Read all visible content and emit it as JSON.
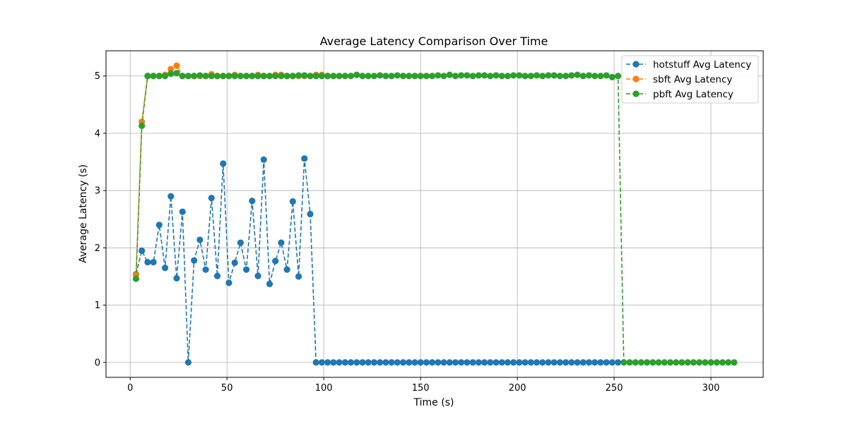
{
  "chart_data": {
    "type": "line",
    "title": "Average Latency Comparison Over Time",
    "xlabel": "Time (s)",
    "ylabel": "Average Latency (s)",
    "xlim": [
      -12.5,
      327
    ],
    "ylim": [
      -0.26,
      5.44
    ],
    "xticks": [
      0,
      50,
      100,
      150,
      200,
      250,
      300
    ],
    "yticks": [
      0,
      1,
      2,
      3,
      4,
      5
    ],
    "grid": true,
    "legend": "top-right",
    "line_style": "dashed",
    "marker": "circle",
    "series": [
      {
        "name": "hotstuff Avg Latency",
        "color": "#1f77b4",
        "points": [
          [
            3,
            1.54
          ],
          [
            6,
            1.95
          ],
          [
            9,
            1.75
          ],
          [
            12,
            1.75
          ],
          [
            15,
            2.4
          ],
          [
            18,
            1.65
          ],
          [
            21,
            2.9
          ],
          [
            24,
            1.47
          ],
          [
            27,
            2.63
          ],
          [
            30,
            0.0
          ],
          [
            33,
            1.78
          ],
          [
            36,
            2.14
          ],
          [
            39,
            1.62
          ],
          [
            42,
            2.87
          ],
          [
            45,
            1.51
          ],
          [
            48,
            3.47
          ],
          [
            51,
            1.39
          ],
          [
            54,
            1.74
          ],
          [
            57,
            2.09
          ],
          [
            60,
            1.62
          ],
          [
            63,
            2.82
          ],
          [
            66,
            1.51
          ],
          [
            69,
            3.54
          ],
          [
            72,
            1.37
          ],
          [
            75,
            1.77
          ],
          [
            78,
            2.09
          ],
          [
            81,
            1.62
          ],
          [
            84,
            2.81
          ],
          [
            87,
            1.5
          ],
          [
            90,
            3.56
          ],
          [
            93,
            2.59
          ],
          [
            96,
            0
          ],
          [
            99,
            0
          ],
          [
            102,
            0
          ],
          [
            105,
            0
          ],
          [
            108,
            0
          ],
          [
            111,
            0
          ],
          [
            114,
            0
          ],
          [
            117,
            0
          ],
          [
            120,
            0
          ],
          [
            123,
            0
          ],
          [
            126,
            0
          ],
          [
            129,
            0
          ],
          [
            132,
            0
          ],
          [
            135,
            0
          ],
          [
            138,
            0
          ],
          [
            141,
            0
          ],
          [
            144,
            0
          ],
          [
            147,
            0
          ],
          [
            150,
            0
          ],
          [
            153,
            0
          ],
          [
            156,
            0
          ],
          [
            159,
            0
          ],
          [
            162,
            0
          ],
          [
            165,
            0
          ],
          [
            168,
            0
          ],
          [
            171,
            0
          ],
          [
            174,
            0
          ],
          [
            177,
            0
          ],
          [
            180,
            0
          ],
          [
            183,
            0
          ],
          [
            186,
            0
          ],
          [
            189,
            0
          ],
          [
            192,
            0
          ],
          [
            195,
            0
          ],
          [
            198,
            0
          ],
          [
            201,
            0
          ],
          [
            204,
            0
          ],
          [
            207,
            0
          ],
          [
            210,
            0
          ],
          [
            213,
            0
          ],
          [
            216,
            0
          ],
          [
            219,
            0
          ],
          [
            222,
            0
          ],
          [
            225,
            0
          ],
          [
            228,
            0
          ],
          [
            231,
            0
          ],
          [
            234,
            0
          ],
          [
            237,
            0
          ],
          [
            240,
            0
          ],
          [
            243,
            0
          ],
          [
            246,
            0
          ],
          [
            249,
            0
          ],
          [
            252,
            0
          ]
        ]
      },
      {
        "name": "sbft Avg Latency",
        "color": "#ff7f0e",
        "points": [
          [
            3,
            1.53
          ],
          [
            6,
            4.2
          ],
          [
            9,
            5.0
          ],
          [
            12,
            5.0
          ],
          [
            15,
            5.0
          ],
          [
            18,
            5.02
          ],
          [
            21,
            5.12
          ],
          [
            24,
            5.18
          ],
          [
            27,
            5.0
          ],
          [
            30,
            5.0
          ],
          [
            33,
            5.0
          ],
          [
            36,
            5.0
          ],
          [
            39,
            5.0
          ],
          [
            42,
            5.03
          ],
          [
            45,
            5.0
          ],
          [
            48,
            5.0
          ],
          [
            51,
            5.0
          ],
          [
            54,
            5.02
          ],
          [
            57,
            5.0
          ],
          [
            60,
            5.0
          ],
          [
            63,
            5.0
          ],
          [
            66,
            5.02
          ],
          [
            69,
            5.0
          ],
          [
            72,
            5.0
          ],
          [
            75,
            5.02
          ],
          [
            78,
            5.02
          ],
          [
            81,
            5.0
          ],
          [
            84,
            5.0
          ],
          [
            87,
            5.0
          ],
          [
            90,
            5.0
          ],
          [
            93,
            5.0
          ],
          [
            96,
            5.02
          ],
          [
            99,
            5.02
          ],
          [
            102,
            5.0
          ],
          [
            105,
            5.0
          ]
        ]
      },
      {
        "name": "pbft Avg Latency",
        "color": "#2ca02c",
        "points": [
          [
            3,
            1.46
          ],
          [
            6,
            4.13
          ],
          [
            9,
            5.0
          ],
          [
            12,
            5.0
          ],
          [
            15,
            5.0
          ],
          [
            18,
            5.0
          ],
          [
            21,
            5.04
          ],
          [
            24,
            5.05
          ],
          [
            27,
            5.0
          ],
          [
            30,
            5.0
          ],
          [
            33,
            5.0
          ],
          [
            36,
            5.01
          ],
          [
            39,
            5.0
          ],
          [
            42,
            5.0
          ],
          [
            45,
            5.0
          ],
          [
            48,
            5.0
          ],
          [
            51,
            5.0
          ],
          [
            54,
            5.0
          ],
          [
            57,
            5.0
          ],
          [
            60,
            5.0
          ],
          [
            63,
            5.0
          ],
          [
            66,
            5.0
          ],
          [
            69,
            5.0
          ],
          [
            72,
            5.0
          ],
          [
            75,
            5.0
          ],
          [
            78,
            5.0
          ],
          [
            81,
            5.0
          ],
          [
            84,
            5.0
          ],
          [
            87,
            5.01
          ],
          [
            90,
            5.01
          ],
          [
            93,
            5.0
          ],
          [
            96,
            5.0
          ],
          [
            99,
            5.0
          ],
          [
            102,
            5.0
          ],
          [
            105,
            5.0
          ],
          [
            108,
            5.0
          ],
          [
            111,
            5.0
          ],
          [
            114,
            5.0
          ],
          [
            117,
            5.02
          ],
          [
            120,
            5.0
          ],
          [
            123,
            5.0
          ],
          [
            126,
            5.0
          ],
          [
            129,
            5.01
          ],
          [
            132,
            5.0
          ],
          [
            135,
            5.0
          ],
          [
            138,
            5.01
          ],
          [
            141,
            5.0
          ],
          [
            144,
            5.0
          ],
          [
            147,
            5.0
          ],
          [
            150,
            5.0
          ],
          [
            153,
            5.0
          ],
          [
            156,
            5.0
          ],
          [
            159,
            5.01
          ],
          [
            162,
            5.0
          ],
          [
            165,
            5.02
          ],
          [
            168,
            5.0
          ],
          [
            171,
            5.01
          ],
          [
            174,
            5.01
          ],
          [
            177,
            5.0
          ],
          [
            180,
            5.01
          ],
          [
            183,
            5.01
          ],
          [
            186,
            5.0
          ],
          [
            189,
            5.01
          ],
          [
            192,
            5.0
          ],
          [
            195,
            5.0
          ],
          [
            198,
            5.01
          ],
          [
            201,
            5.01
          ],
          [
            204,
            5.0
          ],
          [
            207,
            5.0
          ],
          [
            210,
            5.01
          ],
          [
            213,
            5.0
          ],
          [
            216,
            5.01
          ],
          [
            219,
            5.01
          ],
          [
            222,
            5.0
          ],
          [
            225,
            5.0
          ],
          [
            228,
            5.01
          ],
          [
            231,
            5.02
          ],
          [
            234,
            5.0
          ],
          [
            237,
            5.01
          ],
          [
            240,
            5.0
          ],
          [
            243,
            5.0
          ],
          [
            246,
            5.01
          ],
          [
            249,
            4.98
          ],
          [
            252,
            5.0
          ],
          [
            255,
            0
          ],
          [
            258,
            0
          ],
          [
            261,
            0
          ],
          [
            264,
            0
          ],
          [
            267,
            0
          ],
          [
            270,
            0
          ],
          [
            273,
            0
          ],
          [
            276,
            0
          ],
          [
            279,
            0
          ],
          [
            282,
            0
          ],
          [
            285,
            0
          ],
          [
            288,
            0
          ],
          [
            291,
            0
          ],
          [
            294,
            0
          ],
          [
            297,
            0
          ],
          [
            300,
            0
          ],
          [
            303,
            0
          ],
          [
            306,
            0
          ],
          [
            309,
            0
          ],
          [
            312,
            0
          ]
        ]
      }
    ]
  }
}
